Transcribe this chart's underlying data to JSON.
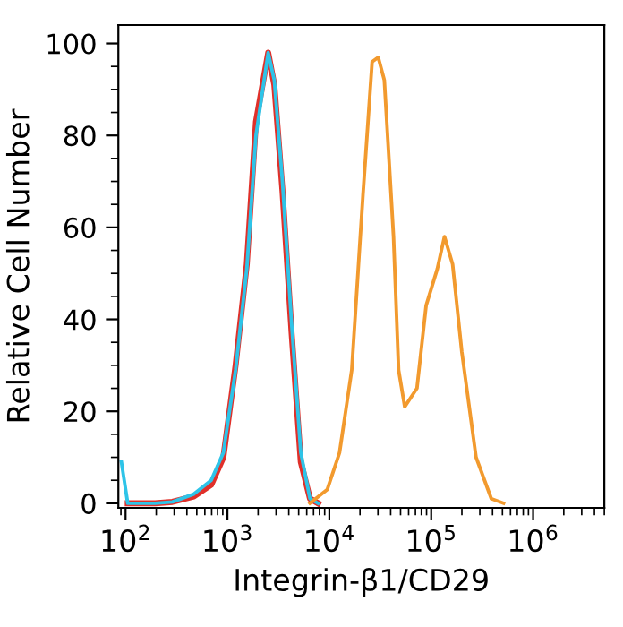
{
  "chart_data": {
    "type": "line",
    "xlabel": "Integrin-β1/CD29",
    "ylabel": "Relative Cell Number",
    "log": "x",
    "grid": false,
    "legend": false,
    "marker": "none",
    "line_style": "solid",
    "xlim": [
      85,
      5000000
    ],
    "xticks": [
      {
        "value": 100,
        "label": "10$^{2}$"
      },
      {
        "value": 1000,
        "label": "10$^{3}$"
      },
      {
        "value": 10000,
        "label": "10$^{4}$"
      },
      {
        "value": 100000,
        "label": "10$^{5}$"
      },
      {
        "value": 1000000,
        "label": "10$^{6}$"
      }
    ],
    "ylim": [
      -1,
      104
    ],
    "yticks": [
      0,
      20,
      40,
      60,
      80,
      100
    ],
    "series": [
      {
        "color": "#e0302a",
        "x": [
          105,
          195,
          288,
          468,
          692,
          912,
          1202,
          1549,
          1905,
          2512,
          2884,
          3467,
          4266,
          5248,
          6457,
          7762
        ],
        "values": [
          0,
          0,
          0.3,
          1.5,
          4,
          10,
          30,
          52,
          83,
          98,
          91,
          68,
          37,
          9,
          1,
          0
        ]
      },
      {
        "color": "#2ec4e8",
        "x": [
          91,
          105,
          195,
          288,
          468,
          692,
          912,
          1202,
          1549,
          1905,
          2512,
          2884,
          3467,
          4266,
          5248,
          6457,
          7762
        ],
        "values": [
          9,
          0,
          0,
          0.3,
          2,
          5,
          11,
          29,
          51,
          80,
          98,
          92,
          70,
          39,
          11,
          1,
          0
        ]
      },
      {
        "color": "#f29a2e",
        "x": [
          6457,
          9550,
          12590,
          16600,
          21380,
          26300,
          30200,
          34670,
          42660,
          47860,
          54950,
          72440,
          89130,
          114800,
          134900,
          162200,
          199500,
          275400,
          389000,
          512900
        ],
        "values": [
          0,
          3,
          11,
          29,
          67,
          96,
          97,
          92,
          58,
          29,
          21,
          25,
          43,
          51,
          58,
          52,
          33,
          10,
          1,
          0
        ]
      }
    ]
  }
}
